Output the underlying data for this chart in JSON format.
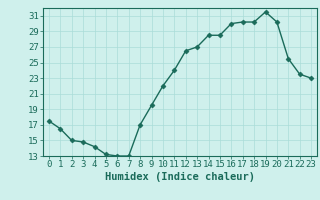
{
  "x": [
    0,
    1,
    2,
    3,
    4,
    5,
    6,
    7,
    8,
    9,
    10,
    11,
    12,
    13,
    14,
    15,
    16,
    17,
    18,
    19,
    20,
    21,
    22,
    23
  ],
  "y": [
    17.5,
    16.5,
    15.0,
    14.8,
    14.2,
    13.2,
    13.0,
    13.0,
    17.0,
    19.5,
    22.0,
    24.0,
    26.5,
    27.0,
    28.5,
    28.5,
    30.0,
    30.2,
    30.2,
    31.5,
    30.2,
    25.5,
    23.5,
    23.0
  ],
  "line_color": "#1a6b5a",
  "marker": "D",
  "marker_size": 2.5,
  "bg_color": "#cff0ec",
  "grid_color": "#aaddd8",
  "xlabel": "Humidex (Indice chaleur)",
  "xlim": [
    -0.5,
    23.5
  ],
  "ylim": [
    13,
    32
  ],
  "yticks": [
    13,
    15,
    17,
    19,
    21,
    23,
    25,
    27,
    29,
    31
  ],
  "xticks": [
    0,
    1,
    2,
    3,
    4,
    5,
    6,
    7,
    8,
    9,
    10,
    11,
    12,
    13,
    14,
    15,
    16,
    17,
    18,
    19,
    20,
    21,
    22,
    23
  ],
  "xlabel_fontsize": 7.5,
  "tick_fontsize": 6.5,
  "tick_color": "#1a6b5a",
  "axis_color": "#1a6b5a",
  "line_width": 1.0
}
